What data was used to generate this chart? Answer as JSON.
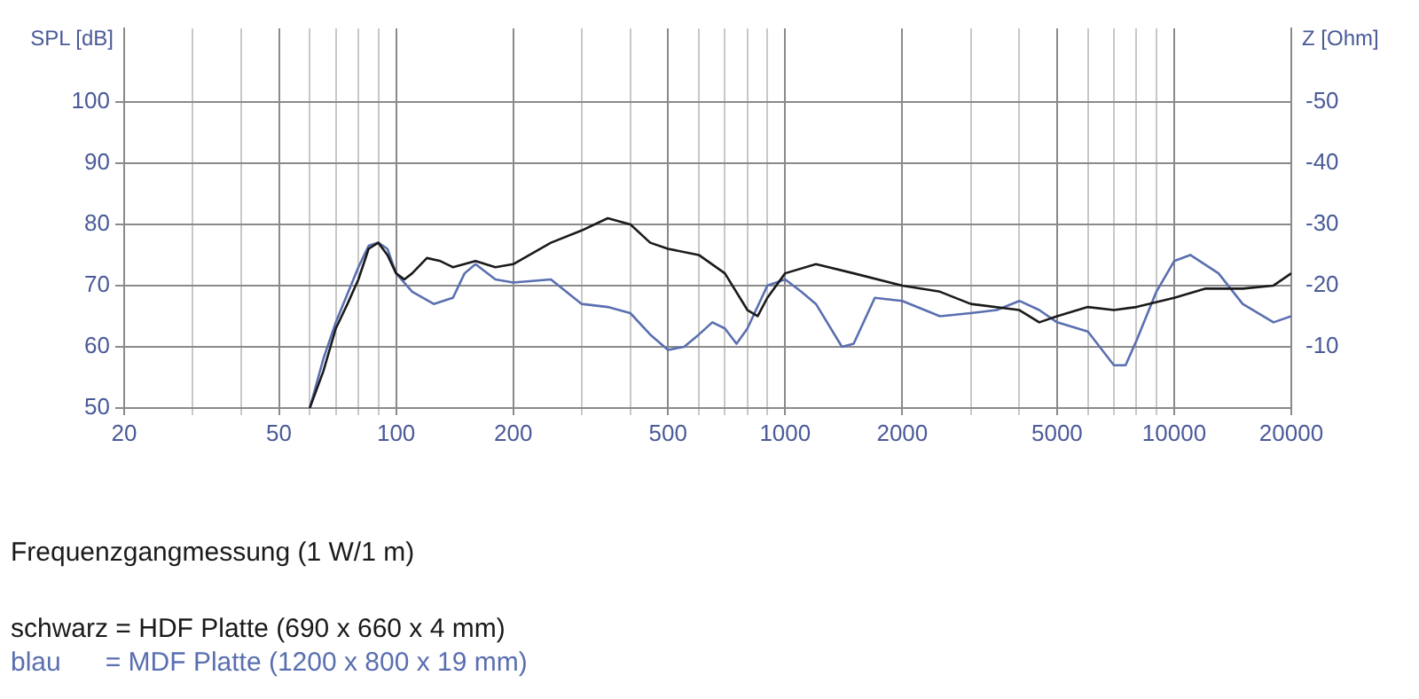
{
  "chart_data": {
    "type": "line",
    "ylabel": "SPL [dB]",
    "y2label": "Z [Ohm]",
    "log": "x",
    "grid": true,
    "legend": false,
    "marker": "none",
    "line_style": "solid",
    "xlim": [
      20,
      20000
    ],
    "xticks": [
      20,
      {
        "value": 30,
        "label": null
      },
      {
        "value": 40,
        "label": null
      },
      50,
      {
        "value": 60,
        "label": null
      },
      {
        "value": 70,
        "label": null
      },
      {
        "value": 80,
        "label": null
      },
      {
        "value": 90,
        "label": null
      },
      100,
      200,
      {
        "value": 300,
        "label": null
      },
      {
        "value": 400,
        "label": null
      },
      500,
      {
        "value": 600,
        "label": null
      },
      {
        "value": 700,
        "label": null
      },
      {
        "value": 800,
        "label": null
      },
      {
        "value": 900,
        "label": null
      },
      1000,
      2000,
      {
        "value": 3000,
        "label": null
      },
      {
        "value": 4000,
        "label": null
      },
      5000,
      {
        "value": 6000,
        "label": null
      },
      {
        "value": 7000,
        "label": null
      },
      {
        "value": 8000,
        "label": null
      },
      {
        "value": 9000,
        "label": null
      },
      10000,
      20000
    ],
    "ylim": [
      50,
      112
    ],
    "yticks": [
      50,
      60,
      70,
      80,
      90,
      100
    ],
    "y2lim": [
      0,
      -62
    ],
    "y2ticks": [
      -50,
      -40,
      -30,
      -20,
      -10
    ],
    "series": [
      {
        "color": "#1a1a1a",
        "x": [
          60,
          65,
          70,
          75,
          80,
          85,
          90,
          95,
          100,
          105,
          110,
          120,
          130,
          140,
          160,
          180,
          200,
          250,
          300,
          350,
          400,
          450,
          500,
          600,
          700,
          800,
          850,
          900,
          1000,
          1200,
          1500,
          2000,
          2500,
          3000,
          4000,
          4500,
          5000,
          6000,
          7000,
          8000,
          10000,
          12000,
          15000,
          18000,
          20000
        ],
        "values": [
          50,
          56,
          63,
          67,
          71,
          76,
          77,
          75,
          72,
          71,
          72,
          74.5,
          74,
          73,
          74,
          73,
          73.5,
          77,
          79,
          81,
          80,
          77,
          76,
          75,
          72,
          66,
          65,
          68,
          72,
          73.5,
          72,
          70,
          69,
          67,
          66,
          64,
          65,
          66.5,
          66,
          66.5,
          68,
          69.5,
          69.5,
          70,
          72
        ]
      },
      {
        "color": "#5a6fb0",
        "x": [
          60,
          65,
          70,
          80,
          85,
          90,
          95,
          100,
          110,
          125,
          140,
          150,
          160,
          180,
          200,
          250,
          300,
          350,
          400,
          450,
          500,
          550,
          600,
          650,
          700,
          750,
          800,
          900,
          1000,
          1100,
          1200,
          1400,
          1500,
          1700,
          2000,
          2500,
          3000,
          3500,
          4000,
          4500,
          5000,
          6000,
          7000,
          7500,
          8000,
          9000,
          10000,
          11000,
          13000,
          15000,
          18000,
          20000
        ],
        "values": [
          50,
          58,
          64,
          73,
          76.5,
          77,
          76,
          72,
          69,
          67,
          68,
          72,
          73.5,
          71,
          70.5,
          71,
          67,
          66.5,
          65.5,
          62,
          59.5,
          60,
          62,
          64,
          63,
          60.5,
          63,
          70,
          71,
          69,
          67,
          60,
          60.5,
          68,
          67.5,
          65,
          65.5,
          66,
          67.5,
          66,
          64,
          62.5,
          57,
          57,
          61,
          69,
          74,
          75,
          72,
          67,
          64,
          65
        ]
      }
    ],
    "annotations": [
      "Frequenzgangmessung (1 W/1 m)",
      "schwarz = HDF Platte (690 x 660 x 4 mm)",
      "blau      = MDF Platte (1200 x 800 x 19 mm)"
    ]
  }
}
